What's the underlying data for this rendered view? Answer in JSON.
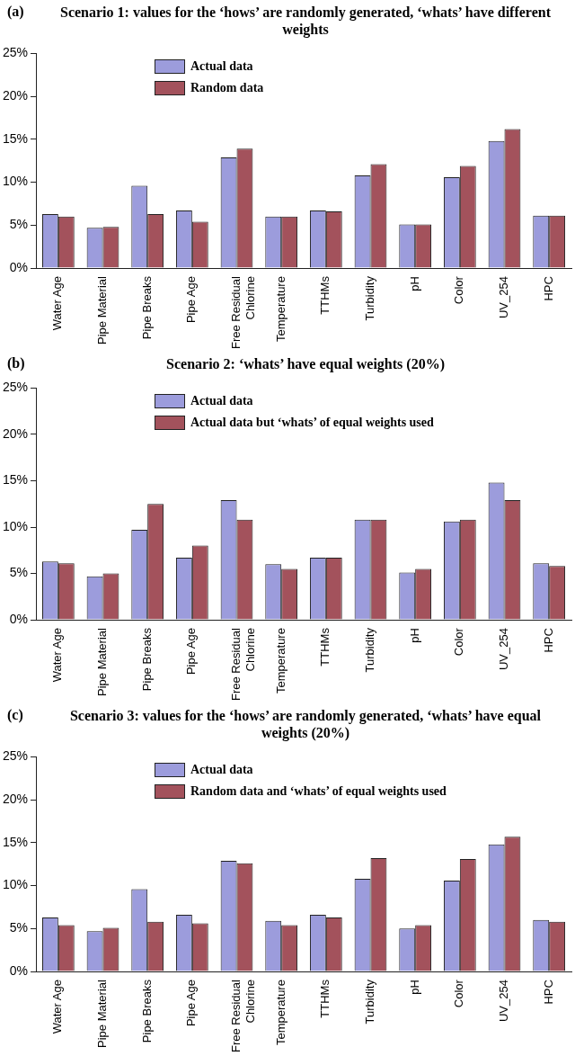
{
  "chart_data": [
    {
      "type": "bar",
      "title": "Scenario 1: values for the ‘hows’ are randomly generated, ‘whats’ have different weights",
      "annotations": [
        "(a)"
      ],
      "categories": [
        "Water Age",
        "Pipe Material",
        "Pipe Breaks",
        "Pipe Age",
        "Free Residual Chlorine",
        "Temperature",
        "TTHMs",
        "Turbidity",
        "pH",
        "Color",
        "UV_254",
        "HPC"
      ],
      "series": [
        {
          "name": "Actual data",
          "color": "#9c9cdc",
          "values": [
            6.3,
            4.7,
            9.6,
            6.7,
            12.9,
            6.0,
            6.7,
            10.8,
            5.1,
            10.6,
            14.8,
            6.1
          ]
        },
        {
          "name": "Random data",
          "color": "#a3525c",
          "values": [
            6.0,
            4.8,
            6.3,
            5.4,
            13.9,
            6.0,
            6.6,
            12.1,
            5.1,
            11.9,
            16.2,
            6.1
          ]
        }
      ],
      "ylim": [
        0,
        25
      ],
      "yticks": [
        {
          "value": 0,
          "label": "0%"
        },
        {
          "value": 5,
          "label": "5%"
        },
        {
          "value": 10,
          "label": "10%"
        },
        {
          "value": 15,
          "label": "15%"
        },
        {
          "value": 20,
          "label": "20%"
        },
        {
          "value": 25,
          "label": "25%"
        }
      ],
      "grid": false,
      "legend": "top left"
    },
    {
      "type": "bar",
      "title": "Scenario 2: ‘whats’ have equal weights (20%)",
      "annotations": [
        "(b)"
      ],
      "categories": [
        "Water Age",
        "Pipe Material",
        "Pipe Breaks",
        "Pipe Age",
        "Free Residual Chlorine",
        "Temperature",
        "TTHMs",
        "Turbidity",
        "pH",
        "Color",
        "UV_254",
        "HPC"
      ],
      "series": [
        {
          "name": "Actual data",
          "color": "#9c9cdc",
          "values": [
            6.3,
            4.7,
            9.7,
            6.7,
            12.9,
            6.0,
            6.7,
            10.8,
            5.1,
            10.6,
            14.8,
            6.1
          ]
        },
        {
          "name": "Actual data but ‘whats’ of equal weights used",
          "color": "#a3525c",
          "values": [
            6.1,
            5.0,
            12.5,
            8.0,
            10.8,
            5.5,
            6.7,
            10.8,
            5.5,
            10.8,
            12.9,
            5.8
          ]
        }
      ],
      "ylim": [
        0,
        25
      ],
      "yticks": [
        {
          "value": 0,
          "label": "0%"
        },
        {
          "value": 5,
          "label": "5%"
        },
        {
          "value": 10,
          "label": "10%"
        },
        {
          "value": 15,
          "label": "15%"
        },
        {
          "value": 20,
          "label": "20%"
        },
        {
          "value": 25,
          "label": "25%"
        }
      ],
      "grid": false,
      "legend": "top left"
    },
    {
      "type": "bar",
      "title": "Scenario 3: values for the ‘hows’ are randomly generated, ‘whats’ have equal weights (20%)",
      "annotations": [
        "(c)"
      ],
      "categories": [
        "Water Age",
        "Pipe Material",
        "Pipe Breaks",
        "Pipe Age",
        "Free Residual Chlorine",
        "Temperature",
        "TTHMs",
        "Turbidity",
        "pH",
        "Color",
        "UV_254",
        "HPC"
      ],
      "series": [
        {
          "name": "Actual data",
          "color": "#9c9cdc",
          "values": [
            6.3,
            4.7,
            9.6,
            6.6,
            12.9,
            5.9,
            6.6,
            10.8,
            5.0,
            10.6,
            14.8,
            6.0
          ]
        },
        {
          "name": "Random data and ‘whats’ of equal weights used",
          "color": "#a3525c",
          "values": [
            5.4,
            5.1,
            5.8,
            5.6,
            12.6,
            5.4,
            6.3,
            13.2,
            5.4,
            13.1,
            15.7,
            5.8
          ]
        }
      ],
      "ylim": [
        0,
        25
      ],
      "yticks": [
        {
          "value": 0,
          "label": "0%"
        },
        {
          "value": 5,
          "label": "5%"
        },
        {
          "value": 10,
          "label": "10%"
        },
        {
          "value": 15,
          "label": "15%"
        },
        {
          "value": 20,
          "label": "20%"
        },
        {
          "value": 25,
          "label": "25%"
        }
      ],
      "grid": false,
      "legend": "top left"
    }
  ]
}
